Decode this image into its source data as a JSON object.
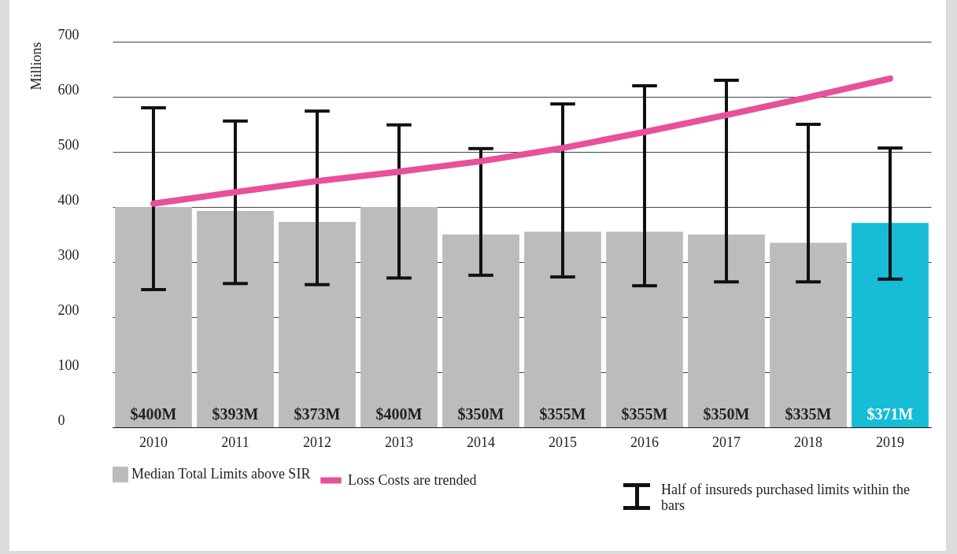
{
  "chart_data": {
    "type": "bar",
    "ylabel": "Millions",
    "categories": [
      "2010",
      "2011",
      "2012",
      "2013",
      "2014",
      "2015",
      "2016",
      "2017",
      "2018",
      "2019"
    ],
    "series": [
      {
        "name": "Median Total Limits above SIR",
        "colors": [
          "#bdbbbd",
          "#bdbbbd",
          "#bdbbbd",
          "#bdbbbd",
          "#bdbbbd",
          "#bdbbbd",
          "#bdbbbd",
          "#bdbbbd",
          "#bdbbbd",
          "#17bcd6"
        ],
        "values": [
          400,
          393,
          373,
          400,
          350,
          355,
          355,
          350,
          335,
          371
        ],
        "value_labels": [
          "$400M",
          "$393M",
          "$373M",
          "$400M",
          "$350M",
          "$355M",
          "$355M",
          "$350M",
          "$335M",
          "$371M"
        ],
        "errors": [
          [
            250,
            580
          ],
          [
            261,
            556
          ],
          [
            259,
            574
          ],
          [
            271,
            549
          ],
          [
            276,
            506
          ],
          [
            273,
            587
          ],
          [
            257,
            620
          ],
          [
            264,
            630
          ],
          [
            264,
            550
          ],
          [
            269,
            507
          ]
        ]
      },
      {
        "name": "Loss Costs are trended",
        "type": "line",
        "color": "#e8509a",
        "values": [
          406,
          427,
          447,
          464,
          483,
          507,
          536,
          567,
          599,
          633
        ]
      }
    ],
    "ylim": [
      0,
      700
    ],
    "yticks": [
      0,
      100,
      200,
      300,
      400,
      500,
      600,
      700
    ],
    "grid": "y",
    "legend": "bottom",
    "annotations": [
      "Half of insureds purchased limits within the bars"
    ]
  }
}
